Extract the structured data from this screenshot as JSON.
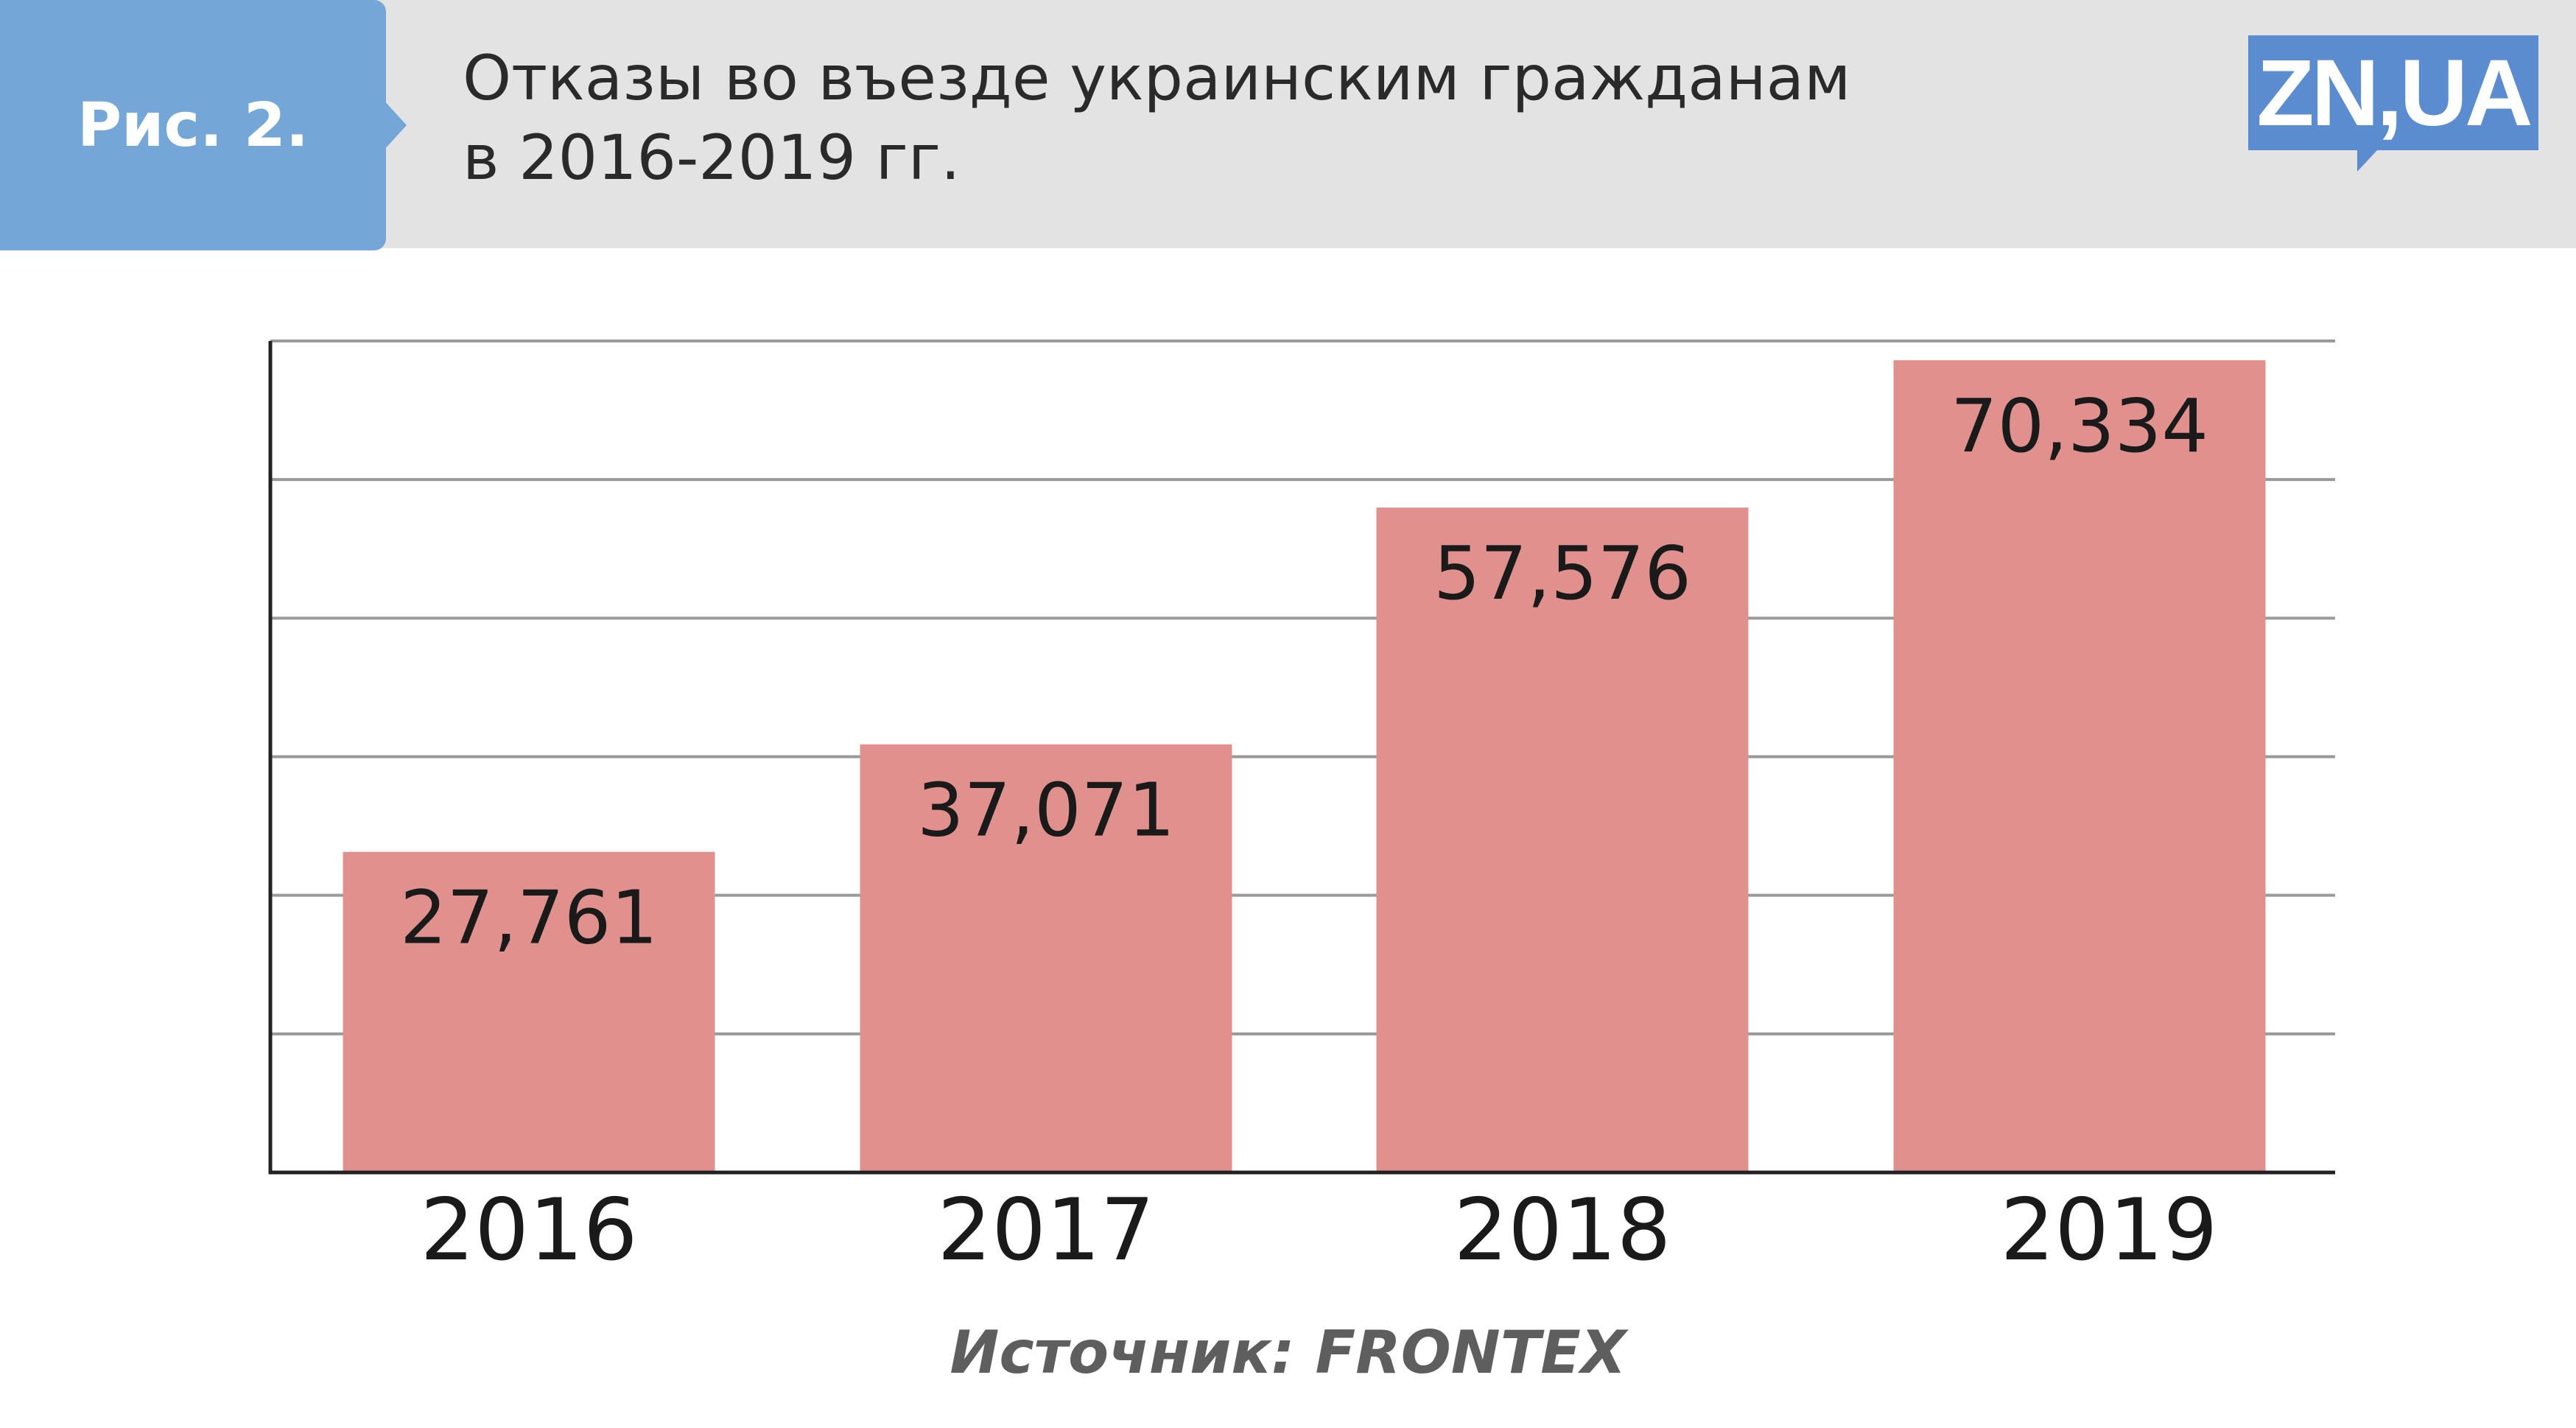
{
  "figure_label": "Рис. 2.",
  "title_line1": "Отказы во въезде украинским гражданам",
  "title_line2": "в 2016-2019 гг.",
  "logo_text": "ZN,UA",
  "source": "Источник: FRONTEX",
  "colors": {
    "header_band": "#e3e3e3",
    "badge": "#74a6d8",
    "logo": "#5b8ccf",
    "bar": "#e0918e",
    "grid": "#9a9a9a",
    "axis": "#222222",
    "text": "#1a1a1a",
    "source_text": "#5e5e5e"
  },
  "chart_data": {
    "type": "bar",
    "title": "Отказы во въезде украинским гражданам в 2016-2019 гг.",
    "xlabel": "",
    "ylabel": "",
    "categories": [
      "2016",
      "2017",
      "2018",
      "2019"
    ],
    "values": [
      27761,
      37071,
      57576,
      70334
    ],
    "value_labels": [
      "27,761",
      "37,071",
      "57,576",
      "70,334"
    ],
    "ylim": [
      0,
      72000
    ],
    "gridlines": [
      12000,
      24000,
      36000,
      48000,
      60000,
      72000
    ],
    "grid": true,
    "legend": "none"
  }
}
